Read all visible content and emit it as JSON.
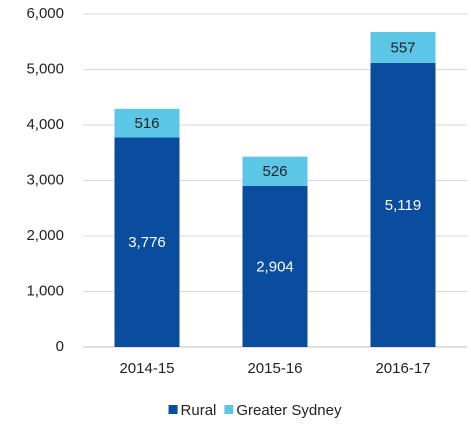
{
  "chart_data": {
    "type": "stacked-bar",
    "categories": [
      "2014-15",
      "2015-16",
      "2016-17"
    ],
    "series": [
      {
        "name": "Rural",
        "color": "#0a4d9f",
        "values": [
          3776,
          2904,
          5119
        ],
        "value_labels": [
          "3,776",
          "2,904",
          "5,119"
        ]
      },
      {
        "name": "Greater Sydney",
        "color": "#5cc6e6",
        "values": [
          516,
          526,
          557
        ]
      }
    ],
    "ylim": [
      0,
      6000
    ],
    "yticks": [
      0,
      {
        "value": 1000,
        "label": "1,000"
      },
      {
        "value": 2000,
        "label": "2,000"
      },
      {
        "value": 3000,
        "label": "3,000"
      },
      {
        "value": 4000,
        "label": "4,000"
      },
      {
        "value": 5000,
        "label": "5,000"
      },
      {
        "value": 6000,
        "label": "6,000"
      }
    ],
    "grid": true,
    "legend": "bottom"
  }
}
